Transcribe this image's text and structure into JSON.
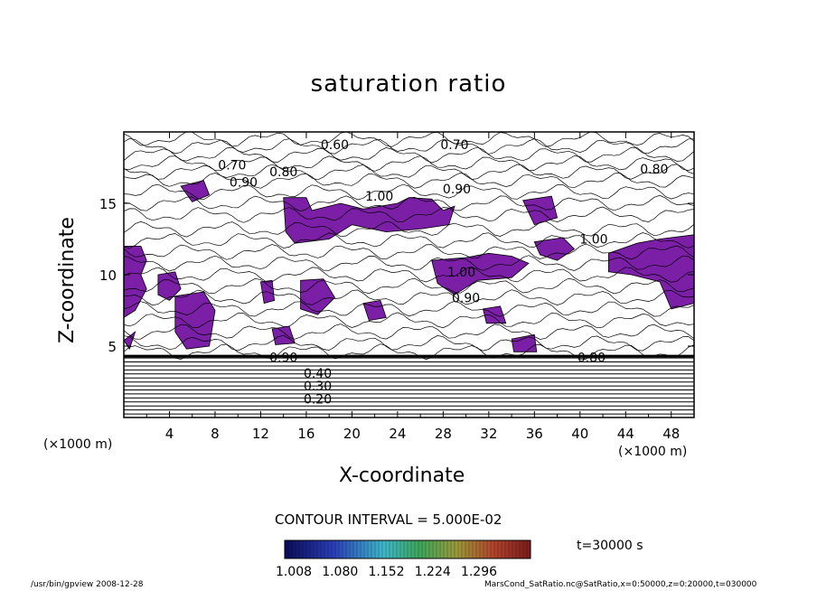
{
  "chart_data": {
    "type": "contour",
    "title": "saturation ratio",
    "xlabel": "X-coordinate",
    "ylabel": "Z-coordinate",
    "x_unit": "(×1000 m)",
    "x_ticks": [
      4,
      8,
      12,
      16,
      20,
      24,
      28,
      32,
      36,
      40,
      44,
      48
    ],
    "y_ticks": [
      5,
      10,
      15
    ],
    "xlim": [
      0,
      50
    ],
    "ylim": [
      0,
      20
    ],
    "contour_interval_text": "CONTOUR INTERVAL = 5.000E-02",
    "contour_labels": [
      {
        "text": "0.60",
        "x": 18.5,
        "z": 19.1
      },
      {
        "text": "0.70",
        "x": 29.0,
        "z": 19.1
      },
      {
        "text": "0.70",
        "x": 9.5,
        "z": 17.7
      },
      {
        "text": "0.80",
        "x": 14.0,
        "z": 17.2
      },
      {
        "text": "0.90",
        "x": 10.5,
        "z": 16.5
      },
      {
        "text": "0.90",
        "x": 29.2,
        "z": 16.0
      },
      {
        "text": "0.80",
        "x": 46.5,
        "z": 17.4
      },
      {
        "text": "1.00",
        "x": 22.4,
        "z": 15.5
      },
      {
        "text": "1.00",
        "x": 41.2,
        "z": 12.5
      },
      {
        "text": "1.00",
        "x": 29.6,
        "z": 10.2
      },
      {
        "text": "0.90",
        "x": 30.0,
        "z": 8.4
      },
      {
        "text": "0.90",
        "x": 14.0,
        "z": 4.2
      },
      {
        "text": "0.80",
        "x": 41.0,
        "z": 4.2
      },
      {
        "text": "0.40",
        "x": 17.0,
        "z": 3.1
      },
      {
        "text": "0.30",
        "x": 17.0,
        "z": 2.2
      },
      {
        "text": "0.20",
        "x": 17.0,
        "z": 1.3
      }
    ],
    "colorbar": {
      "ticks": [
        "1.008",
        "1.080",
        "1.152",
        "1.224",
        "1.296"
      ],
      "min": 1.008,
      "max": 1.296
    },
    "fill_color": "#7a1fa6",
    "time_label": "t=30000 s"
  },
  "footer": {
    "left": "/usr/bin/gpview   2008-12-28",
    "right": "MarsCond_SatRatio.nc@SatRatio,x=0:50000,z=0:20000,t=030000"
  }
}
